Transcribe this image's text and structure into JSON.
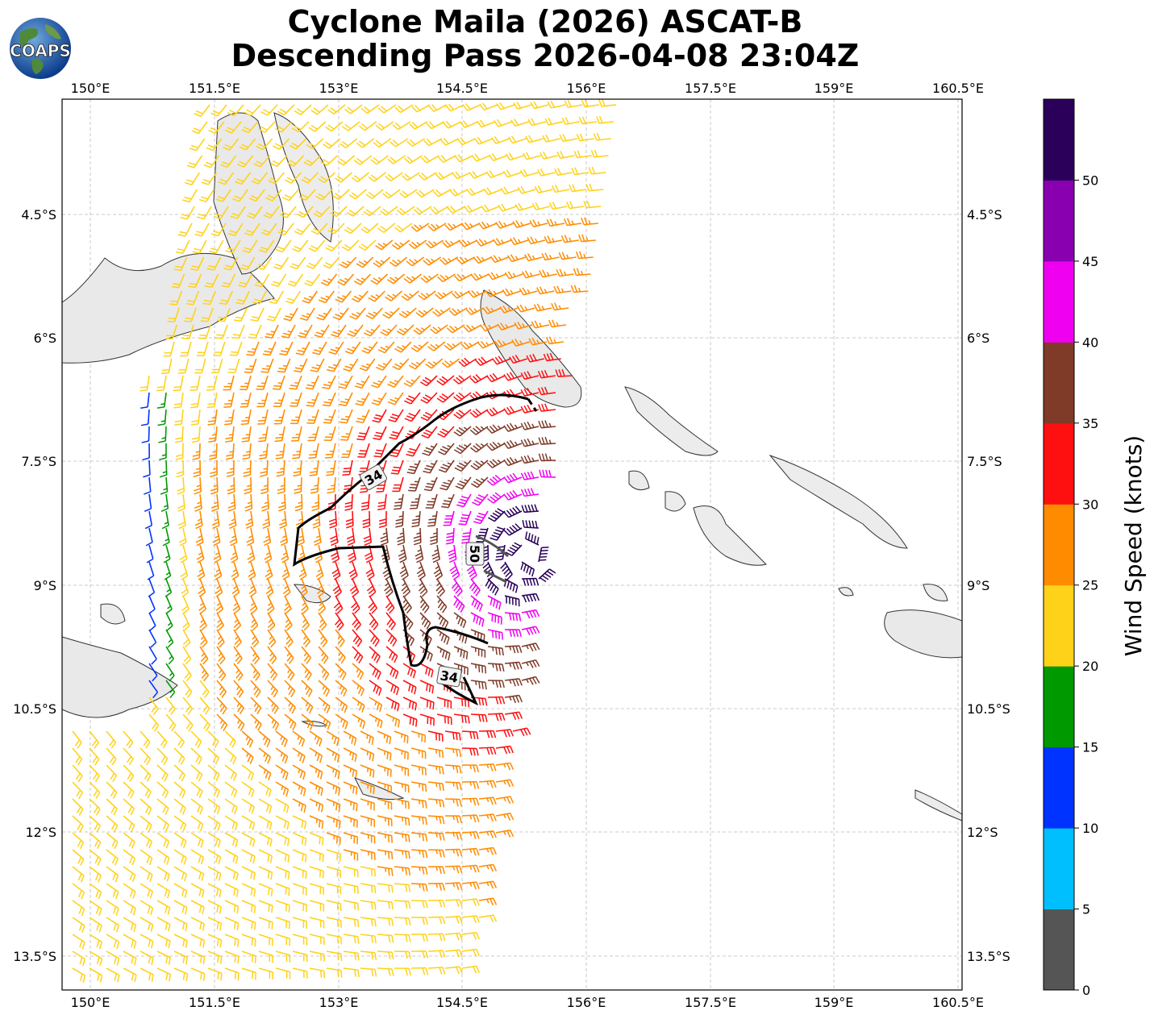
{
  "title_line1": "Cyclone Maila (2026) ASCAT-B",
  "title_line2": "Descending Pass 2026-04-08 23:04Z",
  "logo_text": "COAPS",
  "lon_labels": [
    "150°E",
    "151.5°E",
    "153°E",
    "154.5°E",
    "156°E",
    "157.5°E",
    "159°E",
    "160.5°E"
  ],
  "lat_labels": [
    "4.5°S",
    "6°S",
    "7.5°S",
    "9°S",
    "10.5°S",
    "12°S",
    "13.5°S"
  ],
  "colorbar": {
    "label": "Wind Speed (knots)",
    "ticks": [
      "0",
      "5",
      "10",
      "15",
      "20",
      "25",
      "30",
      "35",
      "40",
      "45",
      "50"
    ],
    "colors": [
      "#555555",
      "#00bfff",
      "#0033ff",
      "#009900",
      "#ffd21a",
      "#ff8c00",
      "#ff1010",
      "#7f3a28",
      "#f000f0",
      "#8800b0",
      "#2a005a"
    ]
  },
  "contour_labels": [
    {
      "text": "34",
      "kind": "34 kt"
    },
    {
      "text": "50",
      "kind": "50 kt"
    },
    {
      "text": "34",
      "kind": "34 kt"
    }
  ],
  "storm": {
    "name": "Maila",
    "year": "2026",
    "sensor": "ASCAT-B",
    "pass": "Descending",
    "time": "2026-04-08 23:04Z"
  }
}
